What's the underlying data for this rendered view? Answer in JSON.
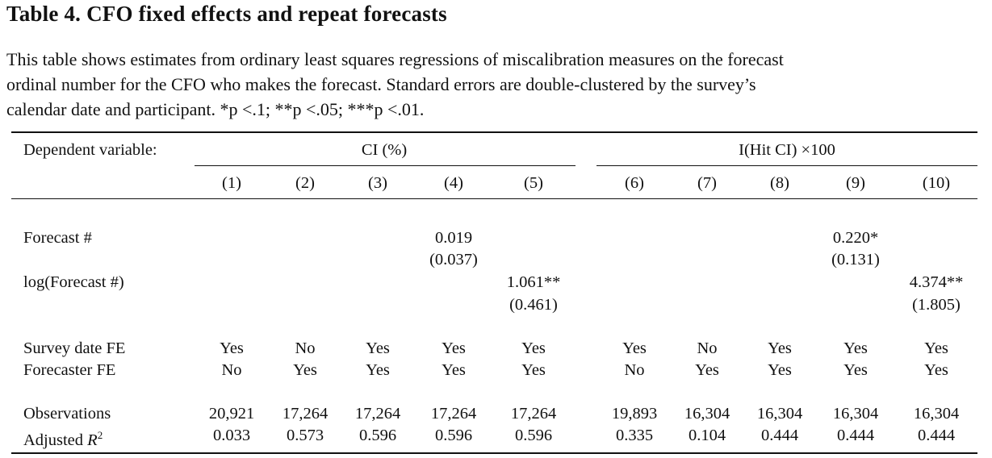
{
  "title": "Table 4. CFO fixed effects and repeat forecasts",
  "caption_lines": [
    "This table shows estimates from ordinary least squares regressions of miscalibration measures on the forecast",
    "ordinal number for the CFO who makes the forecast. Standard errors are double-clustered by the survey’s",
    "calendar date and participant. *p <.1; **p <.05; ***p <.01."
  ],
  "header": {
    "dep_var_label": "Dependent variable:",
    "group1": "CI (%)",
    "group2": "I(Hit CI) ×100",
    "columns": [
      "(1)",
      "(2)",
      "(3)",
      "(4)",
      "(5)",
      "(6)",
      "(7)",
      "(8)",
      "(9)",
      "(10)"
    ]
  },
  "rows": {
    "forecast": {
      "label": "Forecast #",
      "col4_coef": "0.019",
      "col4_se": "(0.037)",
      "col9_coef": "0.220*",
      "col9_se": "(0.131)"
    },
    "log_forecast": {
      "label": "log(Forecast #)",
      "col5_coef": "1.061**",
      "col5_se": "(0.461)",
      "col10_coef": "4.374**",
      "col10_se": "(1.805)"
    },
    "survey_fe": {
      "label": "Survey date FE",
      "values": [
        "Yes",
        "No",
        "Yes",
        "Yes",
        "Yes",
        "Yes",
        "No",
        "Yes",
        "Yes",
        "Yes"
      ]
    },
    "forecaster_fe": {
      "label": "Forecaster FE",
      "values": [
        "No",
        "Yes",
        "Yes",
        "Yes",
        "Yes",
        "No",
        "Yes",
        "Yes",
        "Yes",
        "Yes"
      ]
    },
    "observations": {
      "label": "Observations",
      "values": [
        "20,921",
        "17,264",
        "17,264",
        "17,264",
        "17,264",
        "19,893",
        "16,304",
        "16,304",
        "16,304",
        "16,304"
      ]
    },
    "adj_r2": {
      "label": "Adjusted",
      "label_sym": "R",
      "label_sup": "2",
      "values": [
        "0.033",
        "0.573",
        "0.596",
        "0.596",
        "0.596",
        "0.335",
        "0.104",
        "0.444",
        "0.444",
        "0.444"
      ]
    }
  }
}
